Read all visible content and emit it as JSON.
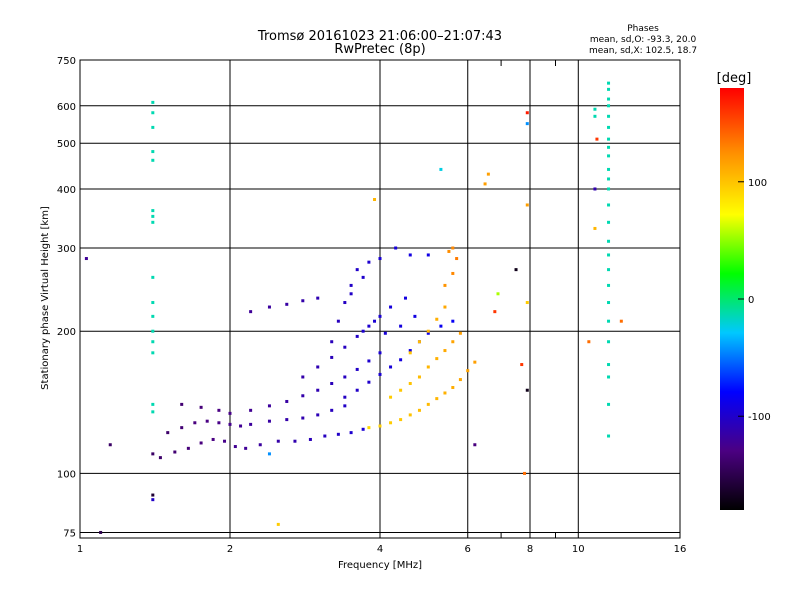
{
  "chart_data": {
    "type": "scatter",
    "title": "Tromsø 20161023 21:06:00–21:07:43",
    "subtitle": "RwPretec (8p)",
    "xlabel": "Frequency [MHz]",
    "ylabel": "Stationary phase Virtual Height [km]",
    "x_scale": "log",
    "y_scale": "log",
    "xlim": [
      1,
      16
    ],
    "ylim": [
      73,
      750
    ],
    "x_ticks": [
      1,
      2,
      4,
      6,
      8,
      10,
      16
    ],
    "y_ticks": [
      75,
      100,
      200,
      300,
      400,
      500,
      600,
      750
    ],
    "grid": true,
    "stats": {
      "header": "Phases",
      "line_o": "mean, sd,O: -93.3, 20.0",
      "line_x": "mean, sd,X: 102.5, 18.7"
    },
    "colorbar": {
      "label": "[deg]",
      "range": [
        -180,
        180
      ],
      "ticks": [
        -100,
        0,
        100
      ],
      "colors": [
        "#000000",
        "#4b0082",
        "#0000ff",
        "#00c8ff",
        "#00ff00",
        "#ffff00",
        "#ff8c00",
        "#ff0000"
      ]
    },
    "series": [
      {
        "description": "o-mode trace",
        "points": [
          [
            1.4,
            110,
            -140
          ],
          [
            1.45,
            108,
            -138
          ],
          [
            1.55,
            111,
            -135
          ],
          [
            1.65,
            113,
            -132
          ],
          [
            1.75,
            116,
            -130
          ],
          [
            1.85,
            118,
            -128
          ],
          [
            1.95,
            117,
            -125
          ],
          [
            2.05,
            114,
            -122
          ],
          [
            2.15,
            113,
            -120
          ],
          [
            2.3,
            115,
            -117
          ],
          [
            2.5,
            117,
            -113
          ],
          [
            2.7,
            117,
            -110
          ],
          [
            2.9,
            118,
            -106
          ],
          [
            3.1,
            120,
            -103
          ],
          [
            3.3,
            121,
            -100
          ],
          [
            3.5,
            122,
            -97
          ],
          [
            3.7,
            124,
            -95
          ],
          [
            1.5,
            122,
            -138
          ],
          [
            1.6,
            125,
            -134
          ],
          [
            1.7,
            128,
            -130
          ],
          [
            1.8,
            129,
            -128
          ],
          [
            1.9,
            128,
            -126
          ],
          [
            2.0,
            127,
            -124
          ],
          [
            2.1,
            126,
            -121
          ],
          [
            2.2,
            127,
            -118
          ],
          [
            2.4,
            129,
            -115
          ],
          [
            2.6,
            130,
            -112
          ],
          [
            2.8,
            131,
            -110
          ],
          [
            3.0,
            133,
            -107
          ],
          [
            3.2,
            136,
            -104
          ],
          [
            3.4,
            139,
            -100
          ],
          [
            1.6,
            140,
            -135
          ],
          [
            1.75,
            138,
            -132
          ],
          [
            1.9,
            136,
            -128
          ],
          [
            2.0,
            134,
            -126
          ],
          [
            2.2,
            136,
            -122
          ],
          [
            2.4,
            139,
            -118
          ],
          [
            2.6,
            142,
            -115
          ],
          [
            2.8,
            146,
            -112
          ],
          [
            3.0,
            150,
            -109
          ],
          [
            3.2,
            155,
            -106
          ],
          [
            3.4,
            160,
            -103
          ],
          [
            3.6,
            166,
            -100
          ],
          [
            3.8,
            173,
            -97
          ],
          [
            4.0,
            180,
            -95
          ],
          [
            2.8,
            160,
            -112
          ],
          [
            3.0,
            168,
            -109
          ],
          [
            3.2,
            176,
            -106
          ],
          [
            3.4,
            185,
            -103
          ],
          [
            3.6,
            195,
            -100
          ],
          [
            3.8,
            205,
            -97
          ],
          [
            4.0,
            215,
            -95
          ],
          [
            4.2,
            225,
            -92
          ],
          [
            4.5,
            235,
            -90
          ],
          [
            3.2,
            190,
            -105
          ],
          [
            3.3,
            210,
            -104
          ],
          [
            3.4,
            230,
            -102
          ],
          [
            3.5,
            250,
            -100
          ],
          [
            3.6,
            270,
            -99
          ],
          [
            3.5,
            240,
            -100
          ],
          [
            3.7,
            260,
            -98
          ],
          [
            3.8,
            280,
            -97
          ],
          [
            4.0,
            285,
            -95
          ],
          [
            4.3,
            300,
            -92
          ],
          [
            4.6,
            290,
            -90
          ],
          [
            5.0,
            290,
            -88
          ],
          [
            3.4,
            145,
            -102
          ],
          [
            3.6,
            150,
            -100
          ],
          [
            3.8,
            156,
            -98
          ],
          [
            4.0,
            162,
            -95
          ],
          [
            4.2,
            168,
            -93
          ],
          [
            4.4,
            174,
            -91
          ],
          [
            4.6,
            182,
            -89
          ],
          [
            4.8,
            190,
            -87
          ],
          [
            5.0,
            198,
            -85
          ],
          [
            5.3,
            205,
            -83
          ],
          [
            5.6,
            210,
            -81
          ],
          [
            2.2,
            220,
            -120
          ],
          [
            2.4,
            225,
            -117
          ],
          [
            2.6,
            228,
            -115
          ],
          [
            2.8,
            232,
            -112
          ],
          [
            3.0,
            235,
            -109
          ],
          [
            3.7,
            200,
            -96
          ],
          [
            3.9,
            210,
            -95
          ],
          [
            4.1,
            198,
            -93
          ],
          [
            4.4,
            205,
            -91
          ],
          [
            4.7,
            215,
            -89
          ]
        ]
      },
      {
        "description": "x-mode trace",
        "points": [
          [
            3.8,
            125,
            95
          ],
          [
            4.0,
            126,
            98
          ],
          [
            4.2,
            128,
            100
          ],
          [
            4.4,
            130,
            102
          ],
          [
            4.6,
            133,
            104
          ],
          [
            4.8,
            136,
            106
          ],
          [
            5.0,
            140,
            108
          ],
          [
            5.2,
            144,
            110
          ],
          [
            5.4,
            148,
            112
          ],
          [
            5.6,
            152,
            114
          ],
          [
            5.8,
            158,
            116
          ],
          [
            6.0,
            165,
            118
          ],
          [
            6.2,
            172,
            120
          ],
          [
            4.2,
            145,
            100
          ],
          [
            4.4,
            150,
            102
          ],
          [
            4.6,
            155,
            104
          ],
          [
            4.8,
            160,
            107
          ],
          [
            5.0,
            168,
            110
          ],
          [
            5.2,
            175,
            112
          ],
          [
            5.4,
            182,
            115
          ],
          [
            5.6,
            190,
            118
          ],
          [
            5.8,
            198,
            120
          ],
          [
            4.6,
            180,
            105
          ],
          [
            4.8,
            190,
            108
          ],
          [
            5.0,
            200,
            110
          ],
          [
            5.2,
            212,
            113
          ],
          [
            5.4,
            225,
            116
          ],
          [
            5.4,
            250,
            125
          ],
          [
            5.6,
            265,
            130
          ],
          [
            5.7,
            285,
            135
          ],
          [
            5.6,
            300,
            130
          ],
          [
            5.5,
            295,
            128
          ]
        ]
      },
      {
        "description": "echo column near 1.4 MHz",
        "points": [
          [
            1.4,
            610,
            -10
          ],
          [
            1.4,
            580,
            -10
          ],
          [
            1.4,
            540,
            -10
          ],
          [
            1.4,
            480,
            -10
          ],
          [
            1.4,
            460,
            -10
          ],
          [
            1.4,
            360,
            -10
          ],
          [
            1.4,
            350,
            -10
          ],
          [
            1.4,
            340,
            -10
          ],
          [
            1.4,
            260,
            -10
          ],
          [
            1.4,
            230,
            -10
          ],
          [
            1.4,
            215,
            -10
          ],
          [
            1.4,
            200,
            -10
          ],
          [
            1.4,
            190,
            -10
          ],
          [
            1.4,
            180,
            -10
          ],
          [
            1.4,
            140,
            -10
          ],
          [
            1.4,
            135,
            -10
          ],
          [
            1.4,
            90,
            -160
          ],
          [
            1.4,
            88,
            -100
          ]
        ]
      },
      {
        "description": "echo column near 11.5 MHz",
        "points": [
          [
            11.5,
            670,
            -10
          ],
          [
            11.5,
            650,
            -10
          ],
          [
            11.5,
            620,
            -10
          ],
          [
            11.5,
            600,
            -10
          ],
          [
            11.5,
            570,
            -10
          ],
          [
            11.5,
            540,
            -10
          ],
          [
            11.5,
            510,
            -10
          ],
          [
            11.5,
            490,
            -10
          ],
          [
            11.5,
            470,
            -10
          ],
          [
            11.5,
            440,
            -10
          ],
          [
            11.5,
            420,
            -10
          ],
          [
            11.5,
            400,
            -10
          ],
          [
            11.5,
            370,
            -10
          ],
          [
            11.5,
            340,
            -10
          ],
          [
            11.5,
            310,
            -10
          ],
          [
            11.5,
            290,
            -10
          ],
          [
            11.5,
            270,
            -10
          ],
          [
            11.5,
            250,
            -10
          ],
          [
            11.5,
            230,
            -10
          ],
          [
            11.5,
            210,
            -10
          ],
          [
            11.5,
            190,
            -10
          ],
          [
            11.5,
            170,
            -10
          ],
          [
            11.5,
            160,
            -10
          ],
          [
            11.5,
            140,
            -10
          ],
          [
            11.5,
            120,
            -10
          ],
          [
            10.8,
            590,
            -10
          ],
          [
            10.8,
            570,
            -10
          ],
          [
            10.9,
            510,
            160
          ],
          [
            10.8,
            400,
            -110
          ],
          [
            10.8,
            330,
            110
          ]
        ]
      },
      {
        "description": "isolated echoes",
        "points": [
          [
            1.03,
            285,
            -120
          ],
          [
            1.15,
            115,
            -140
          ],
          [
            1.1,
            75,
            -150
          ],
          [
            2.5,
            78,
            100
          ],
          [
            2.4,
            110,
            -40
          ],
          [
            3.9,
            380,
            110
          ],
          [
            5.3,
            440,
            -20
          ],
          [
            6.6,
            430,
            120
          ],
          [
            6.5,
            410,
            120
          ],
          [
            6.9,
            240,
            60
          ],
          [
            6.8,
            220,
            160
          ],
          [
            7.5,
            270,
            -170
          ],
          [
            7.7,
            170,
            160
          ],
          [
            7.9,
            580,
            170
          ],
          [
            7.9,
            550,
            -40
          ],
          [
            7.9,
            370,
            120
          ],
          [
            7.9,
            230,
            100
          ],
          [
            7.9,
            150,
            -170
          ],
          [
            7.8,
            100,
            140
          ],
          [
            6.2,
            115,
            -130
          ],
          [
            12.2,
            210,
            140
          ],
          [
            10.5,
            190,
            140
          ]
        ]
      }
    ]
  }
}
